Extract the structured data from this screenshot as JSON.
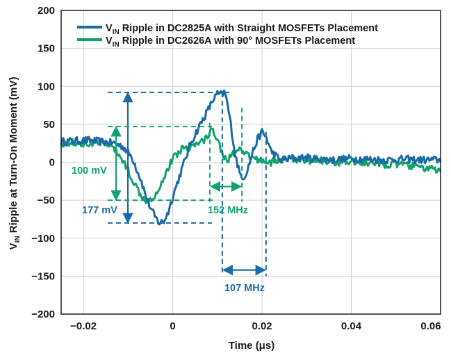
{
  "chart_data": {
    "type": "line",
    "title": "",
    "xlabel": "Time (μs)",
    "ylabel_main": "V",
    "ylabel_sub": "IN",
    "ylabel_rest": " Ripple at Turn-On Moment (mV)",
    "xlim": [
      -0.025,
      0.06
    ],
    "ylim": [
      -200,
      200
    ],
    "x_ticks": [
      -0.02,
      0,
      0.02,
      0.04,
      0.06
    ],
    "x_tick_labels": [
      "−0.02",
      "0",
      "0.02",
      "0.04",
      "0.06"
    ],
    "y_ticks": [
      200,
      150,
      100,
      50,
      0,
      -50,
      -100,
      -150,
      -200
    ],
    "y_tick_labels": [
      "200",
      "150",
      "100",
      "50",
      "0",
      "−50",
      "−100",
      "−150",
      "−200"
    ],
    "grid": true,
    "legend_position": "top",
    "series": [
      {
        "name_main": "V",
        "name_sub": "IN",
        "name_rest": " Ripple in DC2825A with Straight MOSFETs Placement",
        "color": "#1a6aa5",
        "x": [
          -0.025,
          -0.022,
          -0.019,
          -0.016,
          -0.013,
          -0.011,
          -0.009,
          -0.007,
          -0.006,
          -0.005,
          -0.004,
          -0.003,
          -0.002,
          -0.001,
          0.0,
          0.002,
          0.004,
          0.006,
          0.008,
          0.009,
          0.01,
          0.011,
          0.0115,
          0.012,
          0.013,
          0.014,
          0.015,
          0.016,
          0.017,
          0.018,
          0.019,
          0.02,
          0.021,
          0.022,
          0.024,
          0.027,
          0.03,
          0.033,
          0.036,
          0.04,
          0.044,
          0.048,
          0.052,
          0.056,
          0.06
        ],
        "y": [
          27,
          28,
          29,
          27,
          25,
          20,
          5,
          -25,
          -45,
          -60,
          -72,
          -80,
          -78,
          -65,
          -45,
          -10,
          25,
          48,
          70,
          82,
          90,
          89,
          92,
          85,
          50,
          10,
          -15,
          -20,
          -5,
          15,
          30,
          40,
          32,
          15,
          3,
          5,
          6,
          4,
          3,
          5,
          4,
          3,
          4,
          3,
          3
        ]
      },
      {
        "name_main": "V",
        "name_sub": "IN",
        "name_rest": " Ripple in DC2626A with 90° MOSFETs Placement",
        "color": "#10a36e",
        "x": [
          -0.025,
          -0.022,
          -0.019,
          -0.016,
          -0.014,
          -0.012,
          -0.01,
          -0.008,
          -0.006,
          -0.004,
          -0.002,
          0.0,
          0.002,
          0.004,
          0.006,
          0.008,
          0.009,
          0.01,
          0.011,
          0.012,
          0.013,
          0.015,
          0.018,
          0.022,
          0.026,
          0.03,
          0.034,
          0.038,
          0.042,
          0.046,
          0.05,
          0.054,
          0.057,
          0.06
        ],
        "y": [
          25,
          26,
          24,
          25,
          22,
          10,
          -10,
          -35,
          -50,
          -45,
          -20,
          5,
          18,
          20,
          25,
          35,
          45,
          30,
          15,
          0,
          10,
          15,
          5,
          0,
          5,
          3,
          2,
          0,
          0,
          -2,
          -3,
          -5,
          -8,
          -12
        ]
      }
    ],
    "annotations": {
      "blue_amplitude": "177 mV",
      "green_amplitude": "100 mV",
      "green_frequency": "152 MHz",
      "blue_frequency": "107 MHz"
    }
  }
}
